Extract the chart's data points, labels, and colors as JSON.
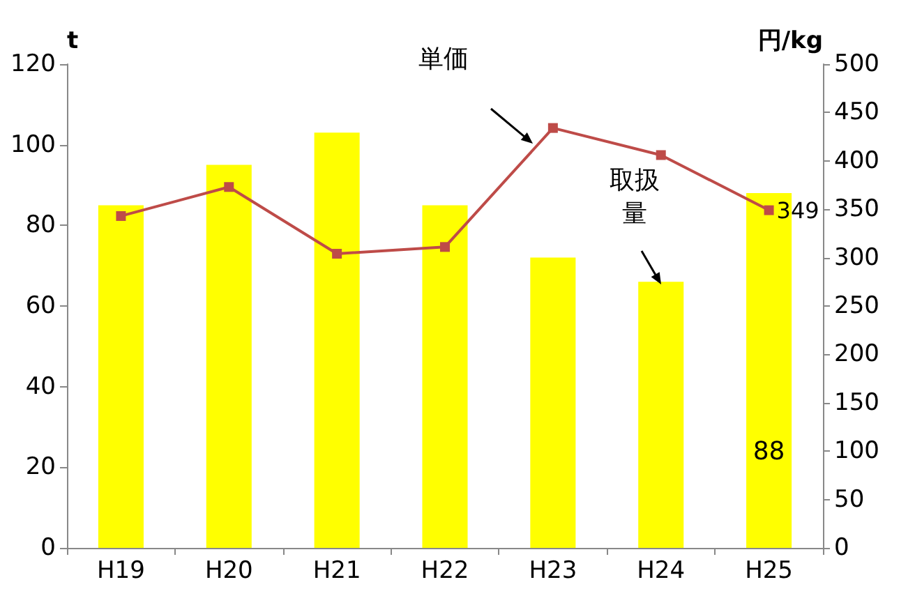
{
  "chart_data": {
    "type": "bar",
    "ylabel": "t",
    "y2label": "円/kg",
    "categories": [
      "H19",
      "H20",
      "H21",
      "H22",
      "H23",
      "H24",
      "H25"
    ],
    "series": [
      {
        "color": "#ffff00",
        "values": [
          85,
          95,
          103,
          85,
          72,
          66,
          88
        ],
        "value_labels": [
          null,
          null,
          null,
          null,
          null,
          null,
          "88"
        ]
      },
      {
        "type": "line",
        "axis": "y2",
        "color": "#be4b48",
        "values": [
          343,
          373,
          304,
          311,
          434,
          406,
          349
        ],
        "value_labels": [
          null,
          null,
          null,
          null,
          null,
          null,
          "349"
        ]
      }
    ],
    "ylim": [
      0,
      120
    ],
    "yticks": [
      0,
      20,
      40,
      60,
      80,
      100,
      120
    ],
    "y2lim": [
      0,
      500
    ],
    "y2ticks": [
      0,
      50,
      100,
      150,
      200,
      250,
      300,
      350,
      400,
      450,
      500
    ],
    "marker": "square",
    "grid": false,
    "annotations": [
      "単価",
      "取扱量"
    ]
  }
}
